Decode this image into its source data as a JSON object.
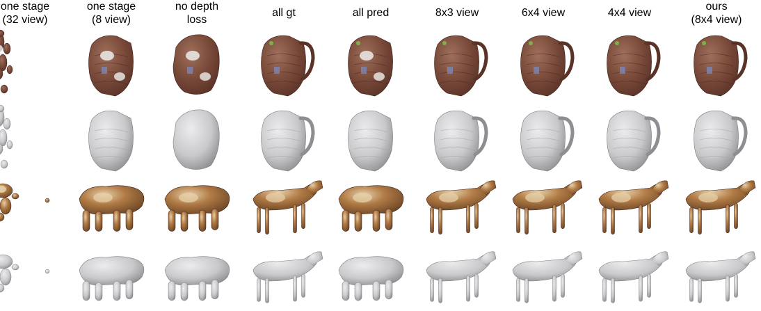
{
  "figure": {
    "columns": [
      {
        "id": "one-stage-32",
        "label": "one stage\n(32 view)"
      },
      {
        "id": "one-stage-8",
        "label": "one stage\n(8 view)"
      },
      {
        "id": "no-depth-loss",
        "label": "no depth\nloss"
      },
      {
        "id": "all-gt",
        "label": "all gt"
      },
      {
        "id": "all-pred",
        "label": "all pred"
      },
      {
        "id": "8x3-view",
        "label": "8x3 view"
      },
      {
        "id": "6x4-view",
        "label": "6x4 view"
      },
      {
        "id": "4x4-view",
        "label": "4x4 view"
      },
      {
        "id": "ours",
        "label": "ours\n(8x4 view)"
      }
    ],
    "rows": [
      {
        "object": "backpack",
        "rendering": "textured"
      },
      {
        "object": "backpack",
        "rendering": "geometry"
      },
      {
        "object": "horse",
        "rendering": "textured"
      },
      {
        "object": "horse",
        "rendering": "geometry"
      }
    ],
    "colors": {
      "leather": "#7a4a3a",
      "leather_dark": "#5a3328",
      "patch_white": "#e8e4e0",
      "patch_blue": "#7a86b8",
      "patch_green": "#7fb04a",
      "horse_tan": "#b07a45",
      "horse_light": "#e6cfa8",
      "horse_dark": "#6b4525",
      "mesh_gray": "#c9c9cb",
      "mesh_shadow": "#8e8e92"
    }
  }
}
